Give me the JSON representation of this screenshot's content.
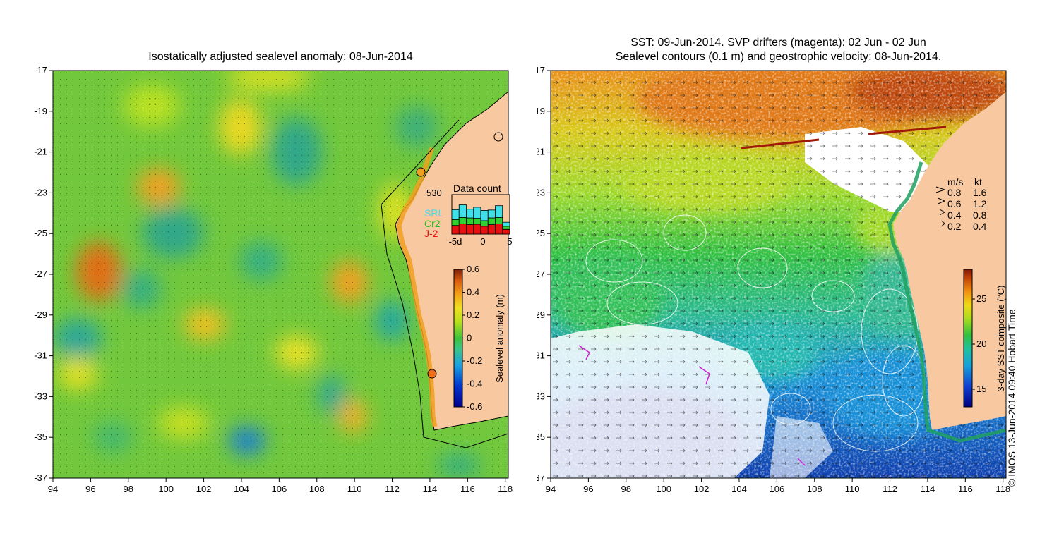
{
  "left_panel": {
    "title": "Isostatically adjusted sealevel anomaly: 08-Jun-2014",
    "x_ticks": [
      "94",
      "96",
      "98",
      "100",
      "102",
      "104",
      "106",
      "108",
      "110",
      "112",
      "114",
      "116",
      "118"
    ],
    "y_ticks": [
      "-17",
      "-19",
      "-21",
      "-23",
      "-25",
      "-27",
      "-29",
      "-31",
      "-33",
      "-35",
      "-37"
    ],
    "colorbar": {
      "label": "Sealevel anomaly (m)",
      "ticks": [
        "0.6",
        "0.4",
        "0.2",
        "0",
        "-0.2",
        "-0.4",
        "-0.6"
      ],
      "min": -0.6,
      "max": 0.6
    },
    "data_count": {
      "title": "Data count",
      "max_label": "530",
      "legend": [
        {
          "name": "SRL",
          "color": "#3fe0e8"
        },
        {
          "name": "Cr2",
          "color": "#2fd02f"
        },
        {
          "name": "J-2",
          "color": "#e81010"
        }
      ],
      "x_ticks": [
        "-5d",
        "0",
        "5"
      ],
      "bars": [
        {
          "j2": 0.22,
          "cr2": 0.15,
          "srl": 0.25
        },
        {
          "j2": 0.26,
          "cr2": 0.16,
          "srl": 0.32
        },
        {
          "j2": 0.24,
          "cr2": 0.17,
          "srl": 0.22
        },
        {
          "j2": 0.25,
          "cr2": 0.15,
          "srl": 0.28
        },
        {
          "j2": 0.2,
          "cr2": 0.14,
          "srl": 0.26
        },
        {
          "j2": 0.24,
          "cr2": 0.17,
          "srl": 0.2
        },
        {
          "j2": 0.26,
          "cr2": 0.16,
          "srl": 0.3
        },
        {
          "j2": 0.12,
          "cr2": 0.08,
          "srl": 0.1
        }
      ]
    }
  },
  "right_panel": {
    "title_line1": "SST: 09-Jun-2014. SVP drifters (magenta): 02 Jun - 02 Jun",
    "title_line2": "Sealevel contours (0.1 m) and geostrophic velocity: 08-Jun-2014.",
    "x_ticks": [
      "94",
      "96",
      "98",
      "100",
      "102",
      "104",
      "106",
      "108",
      "110",
      "112",
      "114",
      "116",
      "118"
    ],
    "y_ticks": [
      "-17",
      "-19",
      "-21",
      "-23",
      "-25",
      "-27",
      "-29",
      "-31",
      "-33",
      "-35",
      "-37"
    ],
    "colorbar": {
      "label": "3-day SST composite (°C)",
      "ticks": [
        "25",
        "20",
        "15"
      ]
    },
    "velocity_legend": {
      "header_ms": "m/s",
      "header_kt": "kt",
      "rows": [
        {
          "ms": "0.8",
          "kt": "1.6"
        },
        {
          "ms": "0.6",
          "kt": "1.2"
        },
        {
          "ms": "0.4",
          "kt": "0.8"
        },
        {
          "ms": "0.2",
          "kt": "0.4"
        }
      ]
    }
  },
  "credit": "© IMOS 13-Jun-2014 09:40 Hobart Time"
}
